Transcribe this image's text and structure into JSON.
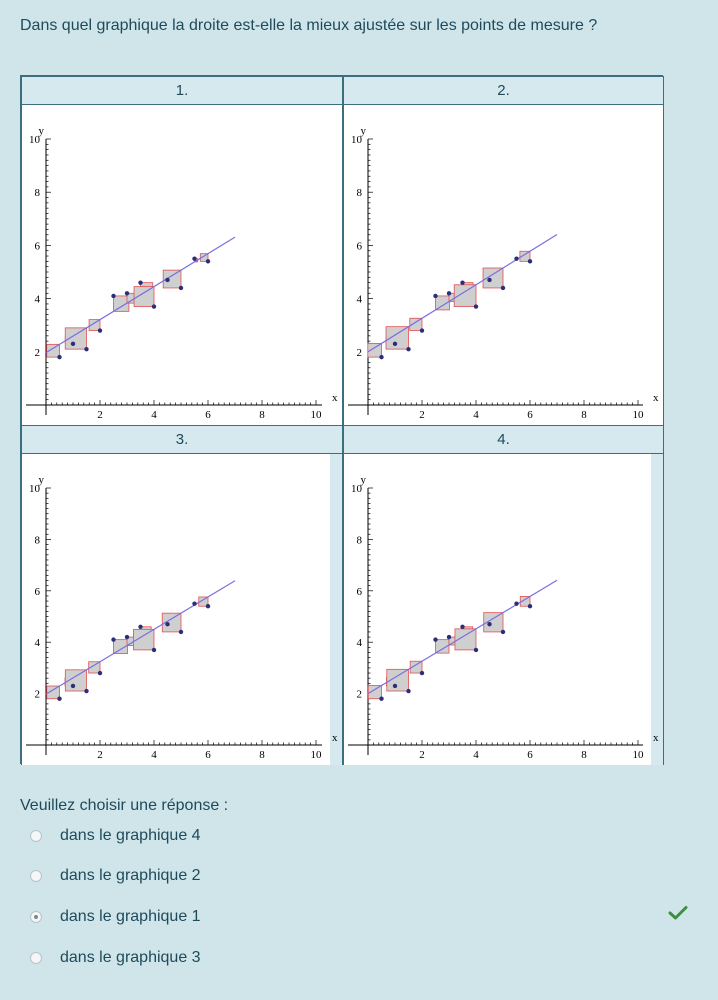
{
  "question": "Dans quel graphique la droite est-elle la mieux ajustée sur les points de mesure ?",
  "panels": [
    {
      "header": "1."
    },
    {
      "header": "2."
    },
    {
      "header": "3."
    },
    {
      "header": "4."
    }
  ],
  "prompt": "Veuillez choisir une réponse :",
  "options": [
    {
      "label": "dans le graphique 4",
      "selected": false
    },
    {
      "label": "dans le graphique 2",
      "selected": false
    },
    {
      "label": "dans le graphique 1",
      "selected": true
    },
    {
      "label": "dans le graphique 3",
      "selected": false
    }
  ],
  "feedback_icon": "checkmark-icon",
  "colors": {
    "line": "#7b6ee0",
    "square_stroke": "#e05050",
    "square_fill": "#cfcfcf",
    "point": "#2b2f7a",
    "check": "#3e8e41"
  },
  "chart_data": [
    {
      "type": "scatter",
      "title": "1.",
      "xlabel": "x",
      "ylabel": "y",
      "xlim": [
        0,
        10
      ],
      "ylim": [
        0,
        10
      ],
      "x_ticks": [
        2,
        4,
        6,
        8,
        10
      ],
      "y_ticks": [
        2,
        4,
        6,
        8,
        10
      ],
      "points": [
        [
          0.5,
          1.8
        ],
        [
          1.0,
          2.3
        ],
        [
          1.5,
          2.1
        ],
        [
          2.0,
          2.8
        ],
        [
          2.5,
          4.1
        ],
        [
          3.0,
          4.2
        ],
        [
          3.5,
          4.6
        ],
        [
          4.0,
          3.7
        ],
        [
          4.5,
          4.7
        ],
        [
          5.0,
          4.4
        ],
        [
          5.5,
          5.5
        ],
        [
          6.0,
          5.4
        ]
      ],
      "line": {
        "slope": 0.62,
        "intercept": 1.97,
        "x_range": [
          0,
          7
        ]
      }
    },
    {
      "type": "scatter",
      "title": "2.",
      "xlabel": "x",
      "ylabel": "y",
      "xlim": [
        0,
        10
      ],
      "ylim": [
        0,
        10
      ],
      "x_ticks": [
        2,
        4,
        6,
        8,
        10
      ],
      "y_ticks": [
        2,
        4,
        6,
        8,
        10
      ],
      "points": [
        [
          0.5,
          1.8
        ],
        [
          1.0,
          2.3
        ],
        [
          1.5,
          2.1
        ],
        [
          2.0,
          2.8
        ],
        [
          2.5,
          4.1
        ],
        [
          3.0,
          4.2
        ],
        [
          3.5,
          4.6
        ],
        [
          4.0,
          3.7
        ],
        [
          4.5,
          4.7
        ],
        [
          5.0,
          4.4
        ],
        [
          5.5,
          5.5
        ],
        [
          6.0,
          5.4
        ]
      ],
      "line": {
        "slope": 0.63,
        "intercept": 2.0,
        "x_range": [
          0,
          7
        ]
      }
    },
    {
      "type": "scatter",
      "title": "3.",
      "xlabel": "x",
      "ylabel": "y",
      "xlim": [
        0,
        10
      ],
      "ylim": [
        0,
        10
      ],
      "x_ticks": [
        2,
        4,
        6,
        8,
        10
      ],
      "y_ticks": [
        2,
        4,
        6,
        8,
        10
      ],
      "points": [
        [
          0.5,
          1.8
        ],
        [
          1.0,
          2.3
        ],
        [
          1.5,
          2.1
        ],
        [
          2.0,
          2.8
        ],
        [
          2.5,
          4.1
        ],
        [
          3.0,
          4.2
        ],
        [
          3.5,
          4.6
        ],
        [
          4.0,
          3.7
        ],
        [
          4.5,
          4.7
        ],
        [
          5.0,
          4.4
        ],
        [
          5.5,
          5.5
        ],
        [
          6.0,
          5.4
        ]
      ],
      "line": {
        "slope": 0.63,
        "intercept": 1.98,
        "x_range": [
          0,
          7
        ]
      }
    },
    {
      "type": "scatter",
      "title": "4.",
      "xlabel": "x",
      "ylabel": "y",
      "xlim": [
        0,
        10
      ],
      "ylim": [
        0,
        10
      ],
      "x_ticks": [
        2,
        4,
        6,
        8,
        10
      ],
      "y_ticks": [
        2,
        4,
        6,
        8,
        10
      ],
      "points": [
        [
          0.5,
          1.8
        ],
        [
          1.0,
          2.3
        ],
        [
          1.5,
          2.1
        ],
        [
          2.0,
          2.8
        ],
        [
          2.5,
          4.1
        ],
        [
          3.0,
          4.2
        ],
        [
          3.5,
          4.6
        ],
        [
          4.0,
          3.7
        ],
        [
          4.5,
          4.7
        ],
        [
          5.0,
          4.4
        ],
        [
          5.5,
          5.5
        ],
        [
          6.0,
          5.4
        ]
      ],
      "line": {
        "slope": 0.63,
        "intercept": 2.0,
        "x_range": [
          0,
          7
        ]
      }
    }
  ]
}
